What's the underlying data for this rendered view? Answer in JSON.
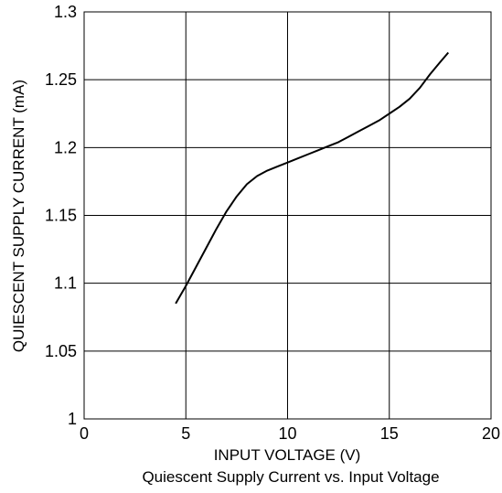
{
  "chart_data": {
    "type": "line",
    "title": "",
    "caption": "Quiescent Supply Current vs. Input Voltage",
    "xlabel": "INPUT VOLTAGE (V)",
    "ylabel": "QUIESCENT SUPPLY CURRENT (mA)",
    "xlim": [
      0,
      20
    ],
    "ylim": [
      1,
      1.3
    ],
    "xticks": [
      "0",
      "5",
      "10",
      "15",
      "20"
    ],
    "yticks": [
      "1",
      "1.05",
      "1.1",
      "1.15",
      "1.2",
      "1.25",
      "1.3"
    ],
    "grid": true,
    "series": [
      {
        "x": [
          4.5,
          5,
          5.5,
          6,
          6.5,
          7,
          7.5,
          8,
          8.5,
          9,
          9.5,
          10,
          10.5,
          11,
          11.5,
          12,
          12.5,
          13,
          13.5,
          14,
          14.5,
          15,
          15.5,
          16,
          16.5,
          17,
          17.5,
          17.9
        ],
        "values": [
          1.085,
          1.098,
          1.112,
          1.126,
          1.14,
          1.153,
          1.164,
          1.173,
          1.179,
          1.183,
          1.186,
          1.189,
          1.192,
          1.195,
          1.198,
          1.201,
          1.204,
          1.208,
          1.212,
          1.216,
          1.22,
          1.225,
          1.23,
          1.236,
          1.244,
          1.254,
          1.263,
          1.27
        ]
      }
    ]
  }
}
